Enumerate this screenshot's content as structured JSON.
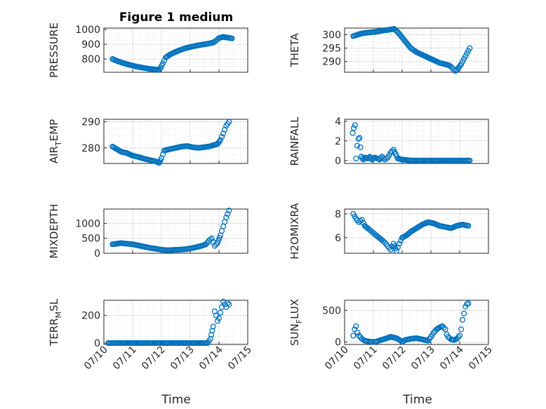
{
  "figure": {
    "title": "Figure 1 medium",
    "xlabel": "Time",
    "xticks": [
      "07/10",
      "07/11",
      "07/12",
      "07/13",
      "07/14",
      "07/15"
    ],
    "marker_color": "#0072BD"
  },
  "chart_data": [
    {
      "type": "scatter",
      "ylabel": "PRESSURE",
      "yticks": [
        800,
        900,
        1000
      ],
      "ylim": [
        710,
        1010
      ],
      "x": [
        10.3,
        10.45,
        10.6,
        10.75,
        10.9,
        11.05,
        11.2,
        11.35,
        11.5,
        11.65,
        11.8,
        11.9,
        11.97,
        12.05,
        12.15,
        12.3,
        12.45,
        12.6,
        12.8,
        13.0,
        13.2,
        13.4,
        13.6,
        13.8,
        13.9,
        14.0,
        14.15,
        14.3,
        14.45
      ],
      "y": [
        800,
        787,
        777,
        768,
        760,
        752,
        746,
        741,
        736,
        732,
        729,
        725,
        740,
        770,
        810,
        830,
        845,
        857,
        871,
        881,
        890,
        897,
        903,
        912,
        925,
        942,
        950,
        945,
        940
      ]
    },
    {
      "type": "scatter",
      "ylabel": "THETA",
      "yticks": [
        290,
        295,
        300
      ],
      "ylim": [
        286,
        302.5
      ],
      "x": [
        10.3,
        10.45,
        10.6,
        10.8,
        11.0,
        11.2,
        11.35,
        11.5,
        11.62,
        11.72,
        11.85,
        12.0,
        12.15,
        12.3,
        12.5,
        12.7,
        12.9,
        13.1,
        13.3,
        13.5,
        13.65,
        13.75,
        13.85,
        13.95,
        14.05,
        14.15,
        14.25,
        14.35
      ],
      "y": [
        299.5,
        300,
        300.5,
        300.8,
        301,
        301.3,
        301.6,
        301.8,
        302,
        302.2,
        301,
        299,
        297,
        295,
        293.5,
        292.5,
        291.5,
        290.5,
        289.5,
        289,
        288.5,
        287.5,
        286.5,
        287.5,
        289,
        291,
        293,
        295
      ]
    },
    {
      "type": "scatter",
      "ylabel": "AIR",
      "ylabel_sub": "T",
      "ylabel_tail": "EMP",
      "yticks": [
        280,
        290
      ],
      "ylim": [
        274,
        291
      ],
      "x": [
        10.3,
        10.45,
        10.6,
        10.8,
        11.0,
        11.2,
        11.4,
        11.6,
        11.8,
        11.92,
        12.0,
        12.1,
        12.3,
        12.5,
        12.7,
        12.9,
        13.1,
        13.3,
        13.5,
        13.65,
        13.8,
        13.95,
        14.05,
        14.15,
        14.25,
        14.35
      ],
      "y": [
        280.5,
        279.5,
        278.5,
        278,
        277,
        276.5,
        275.8,
        275.3,
        274.8,
        274.2,
        276,
        279,
        279.5,
        280,
        280.5,
        280.7,
        280.2,
        280,
        280.3,
        280.5,
        281,
        281.5,
        283,
        285.5,
        288.5,
        290
      ]
    },
    {
      "type": "scatter",
      "ylabel": "RAINFALL",
      "yticks": [
        0,
        2,
        4
      ],
      "ylim": [
        -0.3,
        4.2
      ],
      "x": [
        10.28,
        10.32,
        10.36,
        10.4,
        10.44,
        10.48,
        10.52,
        10.58,
        10.65,
        10.72,
        10.8,
        10.88,
        10.95,
        11.05,
        11.15,
        11.22,
        11.3,
        11.4,
        11.5,
        11.6,
        11.7,
        11.85,
        12.0,
        12.3,
        12.6,
        12.9,
        13.2,
        13.5,
        13.8,
        14.1,
        14.35
      ],
      "y": [
        2.8,
        3.3,
        3.6,
        0.2,
        1.5,
        2.2,
        2.3,
        0.4,
        0.1,
        0.3,
        0.2,
        0.4,
        0.1,
        0.3,
        0.2,
        0.1,
        0.4,
        0.1,
        0.3,
        0.8,
        1.1,
        0.2,
        0.1,
        0,
        0,
        0,
        0,
        0,
        0,
        0,
        0
      ]
    },
    {
      "type": "scatter",
      "ylabel": "MIXDEPTH",
      "yticks": [
        0,
        500,
        1000
      ],
      "ylim": [
        0,
        1480
      ],
      "x": [
        10.3,
        10.45,
        10.6,
        10.8,
        11.0,
        11.2,
        11.4,
        11.6,
        11.8,
        12.0,
        12.2,
        12.4,
        12.6,
        12.8,
        13.0,
        13.2,
        13.4,
        13.55,
        13.65,
        13.75,
        13.85,
        13.95,
        14.05,
        14.15,
        14.25,
        14.35
      ],
      "y": [
        300,
        320,
        340,
        320,
        300,
        260,
        220,
        180,
        150,
        120,
        100,
        110,
        120,
        130,
        160,
        200,
        250,
        300,
        420,
        500,
        250,
        350,
        600,
        900,
        1200,
        1430
      ]
    },
    {
      "type": "scatter",
      "ylabel": "H2OMIXRA",
      "yticks": [
        6,
        8
      ],
      "ylim": [
        4.7,
        8.4
      ],
      "x": [
        10.3,
        10.4,
        10.5,
        10.6,
        10.7,
        10.8,
        10.9,
        11.0,
        11.1,
        11.2,
        11.3,
        11.4,
        11.5,
        11.6,
        11.7,
        11.8,
        11.9,
        12.0,
        12.15,
        12.3,
        12.5,
        12.7,
        12.9,
        13.1,
        13.3,
        13.5,
        13.7,
        13.9,
        14.1,
        14.3
      ],
      "y": [
        8,
        7.6,
        7.3,
        7.5,
        7,
        6.8,
        6.6,
        6.4,
        6.2,
        6,
        5.8,
        5.6,
        5.3,
        5,
        5.5,
        4.9,
        5.5,
        6,
        6.2,
        6.5,
        6.8,
        7.1,
        7.3,
        7.2,
        7,
        6.9,
        6.8,
        7,
        7.1,
        7
      ]
    },
    {
      "type": "scatter",
      "ylabel": "TERR",
      "ylabel_sub": "M",
      "ylabel_tail": "SL",
      "yticks": [
        0,
        200
      ],
      "ylim": [
        -10,
        310
      ],
      "x": [
        10.15,
        10.4,
        10.7,
        11.0,
        11.3,
        11.6,
        11.9,
        12.2,
        12.5,
        12.8,
        13.1,
        13.4,
        13.6,
        13.7,
        13.8,
        13.85,
        13.9,
        13.95,
        14.0,
        14.05,
        14.1,
        14.15,
        14.2,
        14.25,
        14.3,
        14.35
      ],
      "y": [
        0,
        0,
        0,
        0,
        0,
        0,
        0,
        0,
        0,
        0,
        0,
        0,
        0,
        30,
        120,
        230,
        200,
        160,
        180,
        220,
        260,
        300,
        280,
        260,
        290,
        280
      ]
    },
    {
      "type": "scatter",
      "ylabel": "SUN",
      "ylabel_sub": "F",
      "ylabel_tail": "LUX",
      "yticks": [
        0,
        500
      ],
      "ylim": [
        -40,
        660
      ],
      "x": [
        10.3,
        10.35,
        10.4,
        10.45,
        10.5,
        10.6,
        10.7,
        10.8,
        10.9,
        11.0,
        11.1,
        11.2,
        11.4,
        11.6,
        11.8,
        11.95,
        12.0,
        12.1,
        12.3,
        12.5,
        12.7,
        12.9,
        13.0,
        13.1,
        13.2,
        13.3,
        13.4,
        13.5,
        13.55,
        13.6,
        13.7,
        13.8,
        13.9,
        14.0,
        14.05,
        14.1,
        14.15,
        14.2,
        14.25,
        14.3
      ],
      "y": [
        100,
        200,
        250,
        150,
        100,
        50,
        20,
        10,
        5,
        0,
        5,
        20,
        50,
        80,
        60,
        20,
        0,
        30,
        50,
        60,
        40,
        20,
        80,
        150,
        200,
        230,
        250,
        200,
        120,
        80,
        40,
        30,
        50,
        100,
        200,
        350,
        450,
        560,
        600,
        610
      ]
    }
  ]
}
